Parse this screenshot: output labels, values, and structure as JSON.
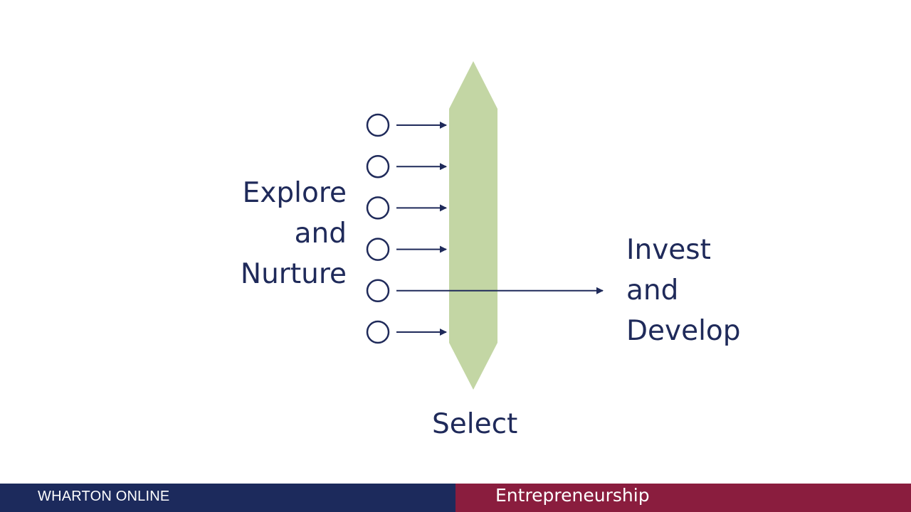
{
  "diagram": {
    "left_label_lines": [
      "Explore",
      "and",
      "Nurture"
    ],
    "right_label_lines": [
      "Invest",
      "and",
      "Develop"
    ],
    "bottom_label": "Select",
    "idea_count": 6,
    "selected_idea_index": 4,
    "colors": {
      "text": "#1f2a5a",
      "filter_bar": "#c3d6a4",
      "arrow": "#1f2a5a"
    }
  },
  "footer": {
    "left_text": "WHARTON ONLINE",
    "right_text": "Entrepreneurship",
    "left_color": "#1c2a5c",
    "right_color": "#8a1d3e"
  }
}
